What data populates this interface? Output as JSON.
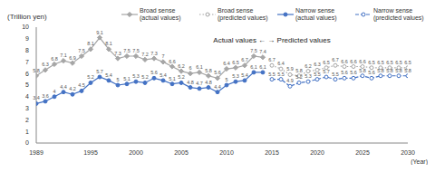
{
  "chart_data": {
    "type": "line",
    "y_label": "(Trillion yen)",
    "x_label": "(Year)",
    "annotations": [
      "Actual values ← → Predicted values"
    ],
    "x": [
      1989,
      1990,
      1991,
      1992,
      1993,
      1994,
      1995,
      1996,
      1997,
      1998,
      1999,
      2000,
      2001,
      2002,
      2003,
      2004,
      2005,
      2006,
      2007,
      2008,
      2009,
      2010,
      2011,
      2012,
      2013,
      2014,
      2015,
      2016,
      2017,
      2018,
      2019,
      2020,
      2021,
      2022,
      2023,
      2024,
      2025,
      2026,
      2027,
      2028,
      2029,
      2030
    ],
    "xlim": [
      1989,
      2030
    ],
    "xticks": [
      1989,
      1995,
      2000,
      2005,
      2010,
      2015,
      2020,
      2025,
      2030
    ],
    "ylim": [
      0,
      10
    ],
    "yticks": [
      0,
      1,
      2,
      3,
      4,
      5,
      6,
      7,
      8,
      9,
      10
    ],
    "grid": false,
    "legend": "top-right",
    "data_labels": true,
    "series": [
      {
        "name": "Broad sense (actual values)",
        "color": "#a6a6a6",
        "marker": "diamond",
        "line_style": "solid",
        "values": [
          5.8,
          6.3,
          6.8,
          7.1,
          6.9,
          7.5,
          8.1,
          9.1,
          8.1,
          7.3,
          7.5,
          7.5,
          7.2,
          7.3,
          7.0,
          6.6,
          6.2,
          6.0,
          6.1,
          5.8,
          5.6,
          6.4,
          6.5,
          6.7,
          7.5,
          7.4,
          null,
          null,
          null,
          null,
          null,
          null,
          null,
          null,
          null,
          null,
          null,
          null,
          null,
          null,
          null,
          null
        ]
      },
      {
        "name": "Broad sense (predicted values)",
        "color": "#a6a6a6",
        "marker": "circle-open",
        "line_style": "dotted",
        "values": [
          null,
          null,
          null,
          null,
          null,
          null,
          null,
          null,
          null,
          null,
          null,
          null,
          null,
          null,
          null,
          null,
          null,
          null,
          null,
          null,
          null,
          null,
          null,
          null,
          null,
          null,
          6.7,
          6.4,
          5.9,
          5.8,
          6.2,
          6.3,
          6.5,
          6.7,
          6.6,
          6.6,
          6.6,
          6.5,
          6.5,
          6.5,
          6.5,
          6.5
        ]
      },
      {
        "name": "Narrow sense (actual values)",
        "color": "#4472c4",
        "marker": "circle",
        "line_style": "solid",
        "values": [
          3.4,
          3.6,
          4.0,
          4.4,
          4.2,
          4.5,
          5.2,
          5.7,
          5.4,
          5.0,
          5.1,
          5.3,
          5.2,
          5.6,
          5.4,
          5.1,
          5.2,
          4.8,
          4.7,
          4.8,
          4.4,
          5.0,
          5.3,
          5.4,
          6.1,
          6.1,
          null,
          null,
          null,
          null,
          null,
          null,
          null,
          null,
          null,
          null,
          null,
          null,
          null,
          null,
          null,
          null
        ]
      },
      {
        "name": "Narrow sense (predicted values)",
        "color": "#4472c4",
        "marker": "circle-open",
        "line_style": "dashed",
        "values": [
          null,
          null,
          null,
          null,
          null,
          null,
          null,
          null,
          null,
          null,
          null,
          null,
          null,
          null,
          null,
          null,
          null,
          null,
          null,
          null,
          null,
          null,
          null,
          null,
          null,
          null,
          5.5,
          5.5,
          4.9,
          5.2,
          5.3,
          5.5,
          5.7,
          5.5,
          5.6,
          5.6,
          5.8,
          5.6,
          5.8,
          5.8,
          5.8,
          5.8
        ]
      }
    ]
  }
}
